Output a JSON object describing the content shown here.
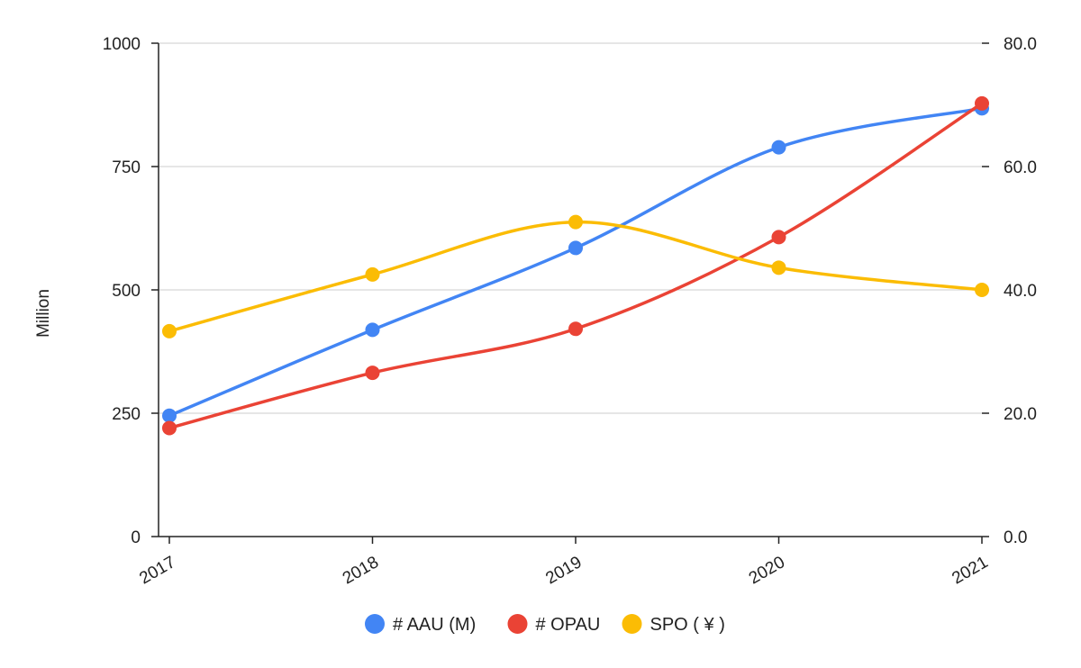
{
  "chart_data": {
    "type": "line",
    "title": "",
    "x": [
      "2017",
      "2018",
      "2019",
      "2020",
      "2021"
    ],
    "xlabel": "",
    "ylabel": "Million",
    "ylim": [
      0,
      1000
    ],
    "y_ticks": [
      "0",
      "250",
      "500",
      "750",
      "1000"
    ],
    "y2label": "",
    "y2lim": [
      0,
      80
    ],
    "y2_ticks": [
      "0.0",
      "20.0",
      "40.0",
      "60.0",
      "80.0"
    ],
    "grid": true,
    "smooth": true,
    "legend": "bottom",
    "series": [
      {
        "name": "# AAU (M)",
        "axis": "left",
        "color": "#4285F4",
        "values": [
          245,
          419,
          585,
          789,
          868
        ]
      },
      {
        "name": "# OPAU",
        "axis": "left",
        "color": "#EA4335",
        "values": [
          220,
          332,
          421,
          607,
          878
        ]
      },
      {
        "name": "SPO ( ¥ )",
        "axis": "right",
        "color": "#FBBC04",
        "values": [
          33.3,
          42.5,
          51.0,
          43.6,
          40.0
        ]
      }
    ]
  }
}
